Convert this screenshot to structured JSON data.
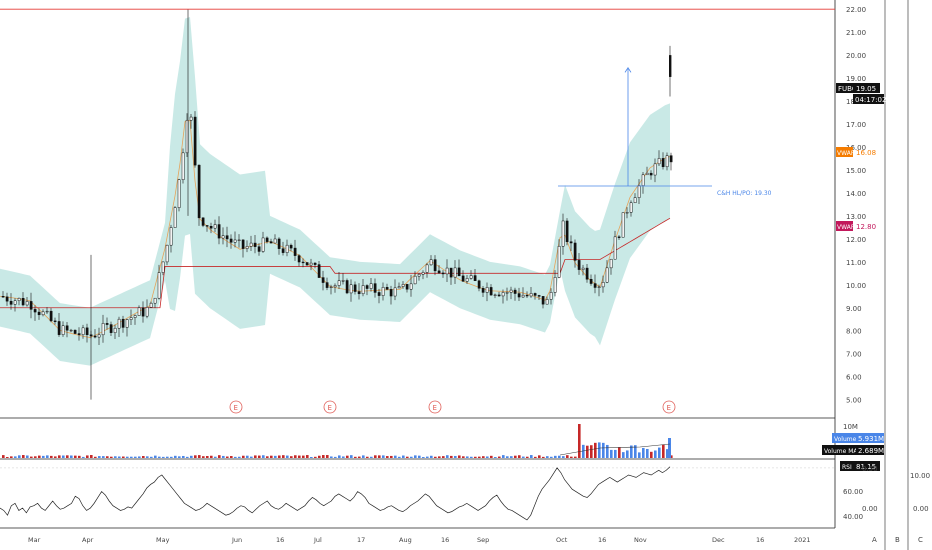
{
  "chart_data": {
    "type": "candlestick",
    "ticker": "FUBO",
    "last_price": "19.05",
    "countdown": "04:17:02",
    "price_axis": {
      "ylim": [
        4.2,
        22.4
      ],
      "ticks": [
        "22.00",
        "21.00",
        "20.00",
        "19.00",
        "18.00",
        "17.00",
        "16.00",
        "15.00",
        "14.00",
        "13.00",
        "12.00",
        "11.00",
        "10.00",
        "9.00",
        "8.00",
        "7.00",
        "6.00",
        "5.00"
      ]
    },
    "x_labels": [
      "Mar",
      "Apr",
      "May",
      "Jun",
      "16",
      "Jul",
      "17",
      "Aug",
      "16",
      "Sep",
      "Oct",
      "16",
      "Nov",
      "Dec",
      "16",
      "2021"
    ],
    "bottom_letters": [
      "A",
      "B",
      "C"
    ],
    "resistance_level": 22.0,
    "vwap_tags": [
      {
        "label": "VWAP",
        "value": "16.08",
        "color": "#f57c00"
      },
      {
        "label": "VWAP",
        "value": "12.80",
        "color": "#c2185b"
      }
    ],
    "annotation": "C&H HL/PO: 19.30",
    "earnings_marker": "E",
    "volume_pane": {
      "top_tick": "10M",
      "volume_label": "Volume",
      "volume_value": "5.931M",
      "volume_color": "#4a86e8",
      "ma_label": "Volume MA",
      "ma_value": "2.689M"
    },
    "rsi_pane": {
      "label": "RSI",
      "value": "81.15",
      "ticks": [
        "60.00",
        "40.00"
      ],
      "secondary_ticks": [
        "0.50",
        "0.00"
      ],
      "tertiary_ticks": [
        "10.00",
        "0.00"
      ],
      "values": [
        46,
        44,
        40,
        48,
        50,
        44,
        46,
        42,
        47,
        48,
        50,
        46,
        44,
        48,
        52,
        48,
        45,
        46,
        48,
        50,
        56,
        54,
        48,
        44,
        46,
        50,
        55,
        60,
        57,
        52,
        48,
        46,
        44,
        45,
        47,
        46,
        50,
        54,
        58,
        63,
        66,
        68,
        72,
        74,
        70,
        66,
        62,
        58,
        54,
        50,
        48,
        46,
        44,
        45,
        47,
        50,
        48,
        46,
        44,
        42,
        40,
        41,
        43,
        46,
        48,
        47,
        44,
        42,
        45,
        48,
        50,
        52,
        48,
        46,
        45,
        47,
        50,
        48,
        46,
        44,
        46,
        48,
        52,
        55,
        53,
        50,
        48,
        50,
        52,
        56,
        58,
        56,
        54,
        52,
        55,
        60,
        58,
        55,
        50,
        48,
        46,
        44,
        45,
        47,
        48,
        46,
        44,
        43,
        45,
        48,
        50,
        52,
        55,
        58,
        56,
        52,
        48,
        46,
        44,
        42,
        43,
        45,
        47,
        48,
        50,
        48,
        46,
        44,
        46,
        48,
        52,
        55,
        57,
        52,
        48,
        45,
        44,
        42,
        40,
        38,
        36,
        40,
        48,
        56,
        62,
        66,
        70,
        75,
        80,
        76,
        70,
        66,
        62,
        60,
        58,
        56,
        55,
        58,
        62,
        66,
        68,
        70,
        72,
        70,
        68,
        70,
        72,
        74,
        73,
        72,
        74,
        76,
        75,
        74,
        76,
        78,
        76,
        78,
        81
      ]
    }
  }
}
